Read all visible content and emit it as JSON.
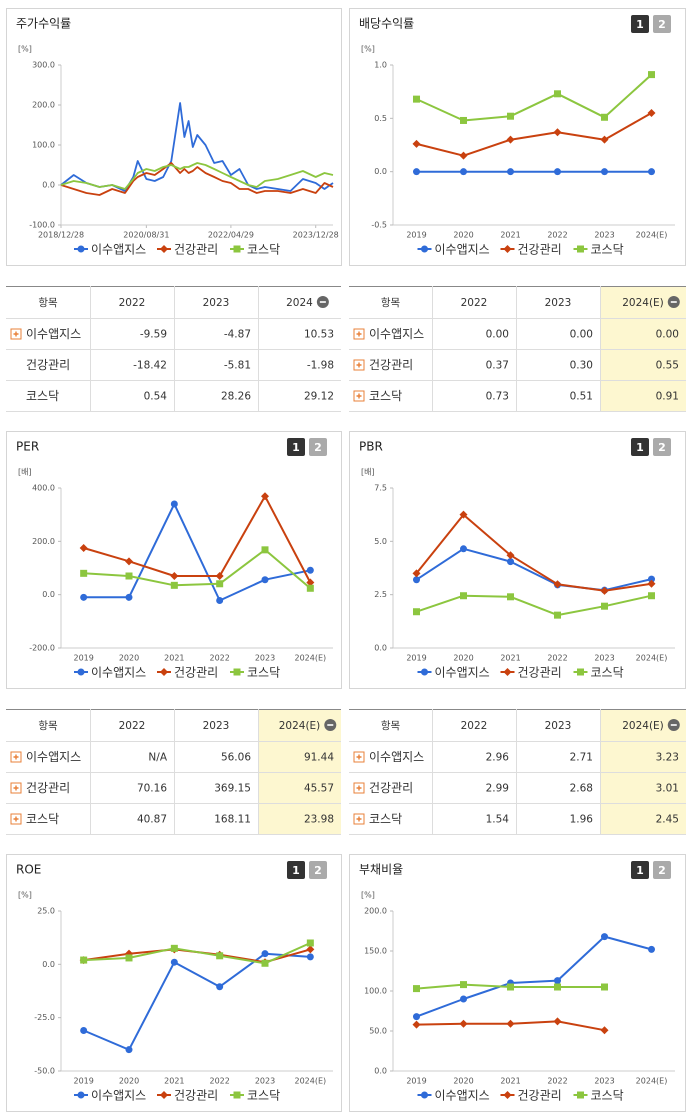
{
  "chart_data": [
    {
      "type": "line",
      "title": "주가수익률",
      "unit": "[%]",
      "markers": false,
      "x": [
        "2018/12/28",
        "2019/03/29",
        "2019/06/28",
        "2019/09/30",
        "2019/12/30",
        "2020/03/31",
        "2020/05/29",
        "2020/06/30",
        "2020/08/31",
        "2020/10/30",
        "2020/12/30",
        "2021/02/26",
        "2021/04/30",
        "2021/05/31",
        "2021/06/30",
        "2021/07/30",
        "2021/08/31",
        "2021/10/29",
        "2021/12/30",
        "2022/02/28",
        "2022/04/29",
        "2022/06/30",
        "2022/08/31",
        "2022/10/31",
        "2022/12/29",
        "2023/03/31",
        "2023/06/30",
        "2023/09/27",
        "2023/12/28",
        "2024/02/29",
        "2024/04/30"
      ],
      "xlim": [
        "2018/12/28",
        "2024/04/30"
      ],
      "xticks": [
        "2018/12/28",
        "2020/08/31",
        "2022/04/29",
        "2023/12/28"
      ],
      "ylim": [
        -100,
        300
      ],
      "yticks": [
        {
          "value": 300,
          "label": "300.0"
        },
        {
          "value": 200,
          "label": "200.0"
        },
        {
          "value": 100,
          "label": "100.0"
        },
        {
          "value": 0,
          "label": "0.0"
        },
        {
          "value": -100,
          "label": "-100.0"
        }
      ],
      "series": [
        {
          "name": "이수앱지스",
          "color": "#2f6bd8",
          "values": [
            0,
            25,
            5,
            -5,
            0,
            -15,
            20,
            60,
            15,
            10,
            20,
            60,
            205,
            120,
            160,
            95,
            125,
            100,
            55,
            60,
            25,
            40,
            0,
            -10,
            -5,
            -10,
            -15,
            15,
            5,
            -10,
            5
          ]
        },
        {
          "name": "건강관리",
          "color": "#c9410f",
          "values": [
            0,
            -10,
            -20,
            -25,
            -10,
            -20,
            10,
            20,
            30,
            25,
            40,
            55,
            30,
            40,
            30,
            35,
            45,
            30,
            20,
            10,
            5,
            -10,
            -10,
            -20,
            -15,
            -15,
            -20,
            -10,
            -20,
            5,
            -5
          ]
        },
        {
          "name": "코스닥",
          "color": "#8cc63f",
          "values": [
            0,
            10,
            5,
            -5,
            0,
            -10,
            15,
            30,
            40,
            35,
            45,
            50,
            40,
            45,
            45,
            50,
            55,
            50,
            40,
            30,
            20,
            10,
            0,
            -5,
            10,
            15,
            25,
            35,
            20,
            30,
            25
          ]
        }
      ]
    },
    {
      "type": "line",
      "title": "배당수익률",
      "unit": "[%]",
      "buttons": [
        "1",
        "2"
      ],
      "markers": true,
      "categories": [
        "2019",
        "2020",
        "2021",
        "2022",
        "2023",
        "2024(E)"
      ],
      "ylim": [
        -0.5,
        1.0
      ],
      "yticks": [
        {
          "value": 1.0,
          "label": "1.0"
        },
        {
          "value": 0.5,
          "label": "0.5"
        },
        {
          "value": 0,
          "label": "0.0"
        },
        {
          "value": -0.5,
          "label": "-0.5"
        }
      ],
      "series": [
        {
          "name": "이수앱지스",
          "color": "#2f6bd8",
          "values": [
            0,
            0,
            0,
            0,
            0,
            0
          ]
        },
        {
          "name": "건강관리",
          "color": "#c9410f",
          "values": [
            0.26,
            0.15,
            0.3,
            0.37,
            0.3,
            0.55
          ]
        },
        {
          "name": "코스닥",
          "color": "#8cc63f",
          "values": [
            0.68,
            0.48,
            0.52,
            0.73,
            0.51,
            0.91
          ]
        }
      ]
    },
    {
      "type": "line",
      "title": "PER",
      "unit": "[배]",
      "buttons": [
        "1",
        "2"
      ],
      "markers": true,
      "categories": [
        "2019",
        "2020",
        "2021",
        "2022",
        "2023",
        "2024(E)"
      ],
      "ylim": [
        -200,
        400
      ],
      "yticks": [
        {
          "value": 400,
          "label": "400.0"
        },
        {
          "value": 200,
          "label": "200.0"
        },
        {
          "value": 0,
          "label": "0.0"
        },
        {
          "value": -200,
          "label": "-200.0"
        }
      ],
      "series": [
        {
          "name": "이수앱지스",
          "color": "#2f6bd8",
          "values": [
            -10,
            -10,
            340,
            -22,
            56.06,
            91.44
          ]
        },
        {
          "name": "건강관리",
          "color": "#c9410f",
          "values": [
            175,
            125,
            70,
            70.16,
            369.15,
            45.57
          ]
        },
        {
          "name": "코스닥",
          "color": "#8cc63f",
          "values": [
            80,
            70,
            35,
            40.87,
            168.11,
            23.98
          ]
        }
      ]
    },
    {
      "type": "line",
      "title": "PBR",
      "unit": "[배]",
      "buttons": [
        "1",
        "2"
      ],
      "markers": true,
      "categories": [
        "2019",
        "2020",
        "2021",
        "2022",
        "2023",
        "2024(E)"
      ],
      "ylim": [
        0,
        7.5
      ],
      "yticks": [
        {
          "value": 7.5,
          "label": "7.5"
        },
        {
          "value": 5,
          "label": "5.0"
        },
        {
          "value": 2.5,
          "label": "2.5"
        },
        {
          "value": 0,
          "label": "0.0"
        }
      ],
      "series": [
        {
          "name": "이수앱지스",
          "color": "#2f6bd8",
          "values": [
            3.2,
            4.65,
            4.05,
            2.96,
            2.71,
            3.23
          ]
        },
        {
          "name": "건강관리",
          "color": "#c9410f",
          "values": [
            3.5,
            6.25,
            4.35,
            2.99,
            2.68,
            3.01
          ]
        },
        {
          "name": "코스닥",
          "color": "#8cc63f",
          "values": [
            1.7,
            2.45,
            2.4,
            1.54,
            1.96,
            2.45
          ]
        }
      ]
    },
    {
      "type": "line",
      "title": "ROE",
      "unit": "[%]",
      "buttons": [
        "1",
        "2"
      ],
      "markers": true,
      "categories": [
        "2019",
        "2020",
        "2021",
        "2022",
        "2023",
        "2024(E)"
      ],
      "ylim": [
        -50,
        25
      ],
      "yticks": [
        {
          "value": 25,
          "label": "25.0"
        },
        {
          "value": 0,
          "label": "0.0"
        },
        {
          "value": -25,
          "label": "-25.0"
        },
        {
          "value": -50,
          "label": "-50.0"
        }
      ],
      "series": [
        {
          "name": "이수앱지스",
          "color": "#2f6bd8",
          "values": [
            -31,
            -40,
            1,
            -10.5,
            5,
            3.5
          ]
        },
        {
          "name": "건강관리",
          "color": "#c9410f",
          "values": [
            2,
            5,
            7,
            4.5,
            1,
            7
          ]
        },
        {
          "name": "코스닥",
          "color": "#8cc63f",
          "values": [
            2,
            3,
            7.5,
            4,
            0.5,
            10
          ]
        }
      ]
    },
    {
      "type": "line",
      "title": "부채비율",
      "unit": "[%]",
      "buttons": [
        "1",
        "2"
      ],
      "markers": true,
      "categories": [
        "2019",
        "2020",
        "2021",
        "2022",
        "2023",
        "2024(E)"
      ],
      "ylim": [
        0,
        200
      ],
      "yticks": [
        {
          "value": 200,
          "label": "200.0"
        },
        {
          "value": 150,
          "label": "150.0"
        },
        {
          "value": 100,
          "label": "100.0"
        },
        {
          "value": 50,
          "label": "50.0"
        },
        {
          "value": 0,
          "label": "0.0"
        }
      ],
      "series": [
        {
          "name": "이수앱지스",
          "color": "#2f6bd8",
          "values": [
            68,
            90,
            110,
            113,
            168,
            152
          ]
        },
        {
          "name": "건강관리",
          "color": "#c9410f",
          "values": [
            58,
            59,
            59,
            62,
            51,
            null
          ]
        },
        {
          "name": "코스닥",
          "color": "#8cc63f",
          "values": [
            103,
            108,
            105,
            105,
            105,
            null
          ]
        }
      ]
    }
  ],
  "tables": [
    {
      "columns": [
        "항목",
        "2022",
        "2023",
        "2024"
      ],
      "highlight_last": false,
      "rows": [
        {
          "name": "이수앱지스",
          "expandable": true,
          "cells": [
            "-9.59",
            "-4.87",
            "10.53"
          ]
        },
        {
          "name": "건강관리",
          "expandable": false,
          "cells": [
            "-18.42",
            "-5.81",
            "-1.98"
          ]
        },
        {
          "name": "코스닥",
          "expandable": false,
          "cells": [
            "0.54",
            "28.26",
            "29.12"
          ]
        }
      ]
    },
    {
      "columns": [
        "항목",
        "2022",
        "2023",
        "2024(E)"
      ],
      "highlight_last": true,
      "rows": [
        {
          "name": "이수앱지스",
          "expandable": true,
          "cells": [
            "0.00",
            "0.00",
            "0.00"
          ]
        },
        {
          "name": "건강관리",
          "expandable": true,
          "cells": [
            "0.37",
            "0.30",
            "0.55"
          ]
        },
        {
          "name": "코스닥",
          "expandable": true,
          "cells": [
            "0.73",
            "0.51",
            "0.91"
          ]
        }
      ]
    },
    {
      "columns": [
        "항목",
        "2022",
        "2023",
        "2024(E)"
      ],
      "highlight_last": true,
      "rows": [
        {
          "name": "이수앱지스",
          "expandable": true,
          "cells": [
            "N/A",
            "56.06",
            "91.44"
          ]
        },
        {
          "name": "건강관리",
          "expandable": true,
          "cells": [
            "70.16",
            "369.15",
            "45.57"
          ]
        },
        {
          "name": "코스닥",
          "expandable": true,
          "cells": [
            "40.87",
            "168.11",
            "23.98"
          ]
        }
      ]
    },
    {
      "columns": [
        "항목",
        "2022",
        "2023",
        "2024(E)"
      ],
      "highlight_last": true,
      "rows": [
        {
          "name": "이수앱지스",
          "expandable": true,
          "cells": [
            "2.96",
            "2.71",
            "3.23"
          ]
        },
        {
          "name": "건강관리",
          "expandable": true,
          "cells": [
            "2.99",
            "2.68",
            "3.01"
          ]
        },
        {
          "name": "코스닥",
          "expandable": true,
          "cells": [
            "1.54",
            "1.96",
            "2.45"
          ]
        }
      ]
    }
  ]
}
